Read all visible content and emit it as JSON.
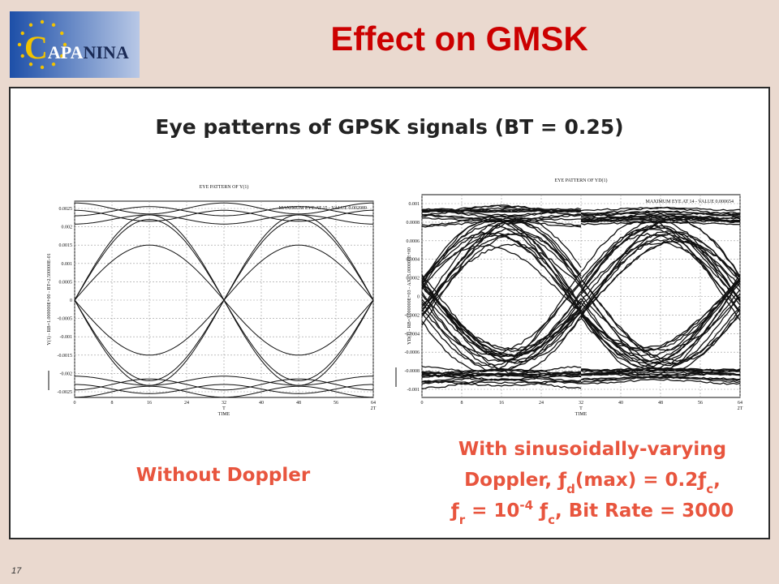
{
  "header": {
    "logo": [
      "C",
      "APA",
      "NINA"
    ],
    "title": "Effect on GMSK"
  },
  "panel": {
    "heading": "Eye patterns of GPSK signals (BT = 0.25)"
  },
  "plots": [
    {
      "title": "EYE PATTERN OF Y(1)",
      "note": "MAXIMUM EYE AT 15 - VALUE 0.002089",
      "ylabel": "Y(1) - RB=1.000000E+00 - BT=2.500000E-01",
      "yticks": [
        "0.0025",
        "0.002",
        "0.0015",
        "0.001",
        "0.0005",
        "0",
        "-0.0005",
        "-0.001",
        "-0.0015",
        "-0.002",
        "-0.0025"
      ],
      "xticks": [
        "0",
        "8",
        "16",
        "24",
        "32",
        "40",
        "48",
        "56",
        "64"
      ],
      "xmarks": [
        "T",
        "2T"
      ],
      "xlabel": "TIME"
    },
    {
      "title": "EYE PATTERN OF YD(1)",
      "note": "MAXIMUM EYE AT 14 - VALUE 0.000654",
      "ylabel": "YD(1) - RB=3.000000E+03 - AX=5.000000E+00",
      "yticks": [
        "0.001",
        "0.0008",
        "0.0006",
        "0.0004",
        "0.0002",
        "0",
        "-0.0002",
        "-0.0004",
        "-0.0006",
        "-0.0008",
        "-0.001"
      ],
      "xticks": [
        "0",
        "8",
        "16",
        "24",
        "32",
        "40",
        "48",
        "56",
        "64"
      ],
      "xmarks": [
        "T",
        "2T"
      ],
      "xlabel": "TIME"
    }
  ],
  "captions": {
    "left": "Without Doppler",
    "right": [
      [
        {
          "text": "With sinusoidally-varying"
        }
      ],
      [
        {
          "text": "Doppler, ƒ"
        },
        {
          "text": "d",
          "shift": "sub"
        },
        {
          "text": "(max) = 0.2ƒ"
        },
        {
          "text": "c",
          "shift": "sub"
        },
        {
          "text": ","
        }
      ],
      [
        {
          "text": "ƒ"
        },
        {
          "text": "r",
          "shift": "sub"
        },
        {
          "text": " = 10"
        },
        {
          "text": "-4",
          "shift": "super"
        },
        {
          "text": " ƒ"
        },
        {
          "text": "c",
          "shift": "sub"
        },
        {
          "text": ", Bit Rate = 3000"
        }
      ]
    ]
  },
  "footer": {
    "page": "17"
  }
}
